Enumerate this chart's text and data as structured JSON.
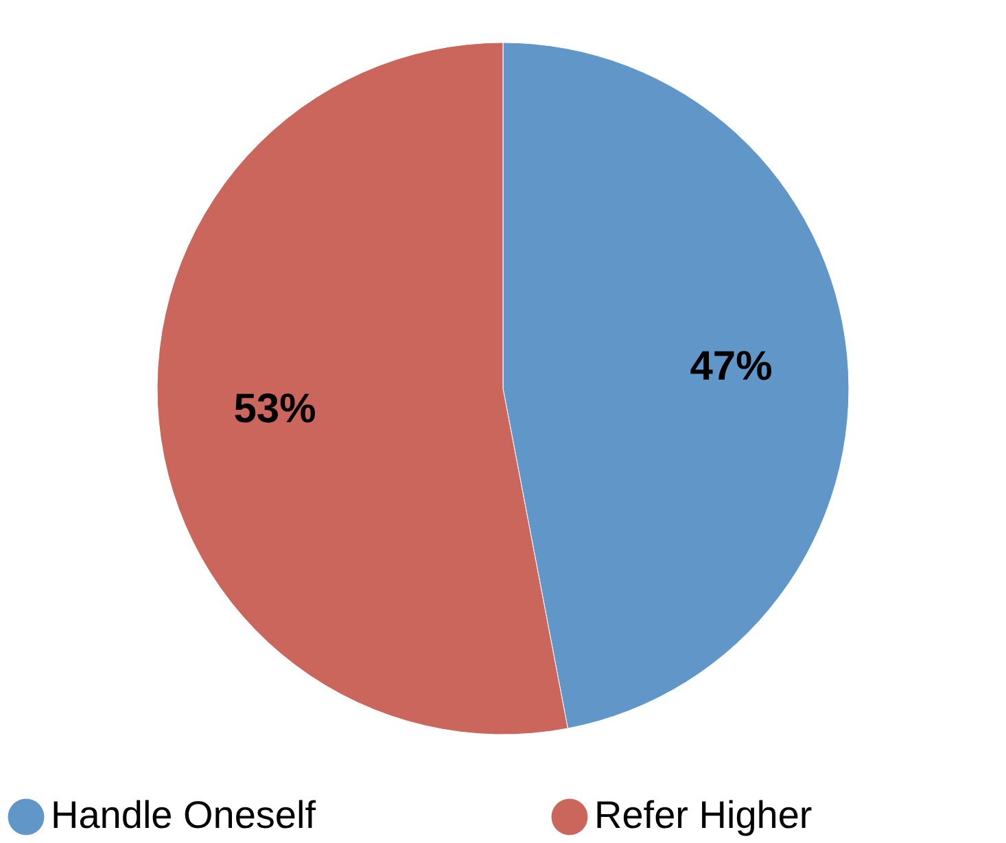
{
  "chart_data": {
    "type": "pie",
    "categories": [
      "Handle Oneself",
      "Refer Higher"
    ],
    "values": [
      47,
      53
    ],
    "colors": [
      "#6096c8",
      "#cb665c"
    ],
    "value_labels": [
      "47%",
      "53%"
    ],
    "legend": "bottom"
  }
}
